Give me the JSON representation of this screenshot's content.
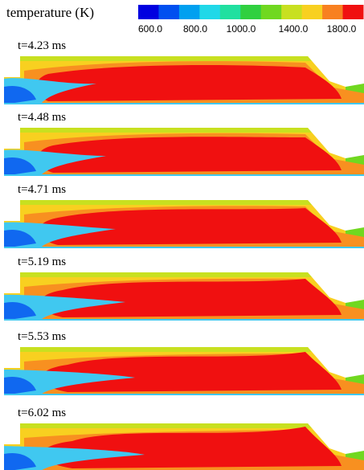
{
  "legend": {
    "title": "temperature (K)",
    "ticks": [
      "600.0",
      "800.0",
      "1000.0",
      "1400.0",
      "1800.0"
    ]
  },
  "panels": [
    {
      "label": "t=4.23 ms"
    },
    {
      "label": "t=4.48 ms"
    },
    {
      "label": "t=4.71 ms"
    },
    {
      "label": "t=5.19 ms"
    },
    {
      "label": "t=5.53 ms"
    },
    {
      "label": "t=6.02 ms"
    }
  ]
}
